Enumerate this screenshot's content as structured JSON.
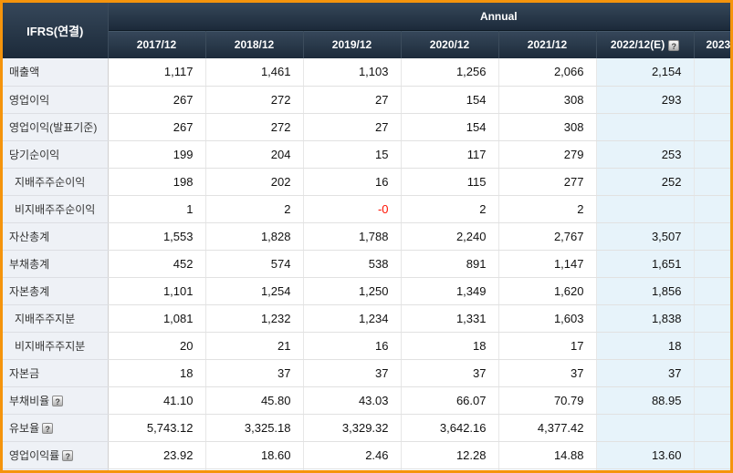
{
  "header": {
    "corner_label": "IFRS(연결)",
    "group_label": "Annual"
  },
  "icons": {
    "help_glyph": "?"
  },
  "colors": {
    "frame_orange": "#f5940c",
    "hdr_top": "#36475a",
    "hdr_bottom": "#1c2a3a",
    "label_bg": "#eef1f6",
    "est_bg": "#e7f3fa",
    "negative": "#ff1100"
  },
  "table": {
    "columns": [
      {
        "label": "2017/12"
      },
      {
        "label": "2018/12"
      },
      {
        "label": "2019/12"
      },
      {
        "label": "2020/12"
      },
      {
        "label": "2021/12"
      },
      {
        "label": "2022/12(E)",
        "estimate": true,
        "help": true
      },
      {
        "label": "2023",
        "estimate": true,
        "cut": true
      }
    ],
    "rows": [
      {
        "label": "매출액",
        "values": [
          "1,117",
          "1,461",
          "1,103",
          "1,256",
          "2,066",
          "2,154",
          ""
        ]
      },
      {
        "label": "영업이익",
        "values": [
          "267",
          "272",
          "27",
          "154",
          "308",
          "293",
          ""
        ]
      },
      {
        "label": "영업이익(발표기준)",
        "values": [
          "267",
          "272",
          "27",
          "154",
          "308",
          "",
          ""
        ]
      },
      {
        "label": "당기순이익",
        "values": [
          "199",
          "204",
          "15",
          "117",
          "279",
          "253",
          ""
        ]
      },
      {
        "label": "지배주주순이익",
        "indent": true,
        "values": [
          "198",
          "202",
          "16",
          "115",
          "277",
          "252",
          ""
        ]
      },
      {
        "label": "비지배주주순이익",
        "indent": true,
        "values": [
          "1",
          "2",
          "-0",
          "2",
          "2",
          "",
          ""
        ]
      },
      {
        "label": "자산총계",
        "values": [
          "1,553",
          "1,828",
          "1,788",
          "2,240",
          "2,767",
          "3,507",
          ""
        ]
      },
      {
        "label": "부채총계",
        "values": [
          "452",
          "574",
          "538",
          "891",
          "1,147",
          "1,651",
          ""
        ]
      },
      {
        "label": "자본총계",
        "values": [
          "1,101",
          "1,254",
          "1,250",
          "1,349",
          "1,620",
          "1,856",
          ""
        ]
      },
      {
        "label": "지배주주지분",
        "indent": true,
        "values": [
          "1,081",
          "1,232",
          "1,234",
          "1,331",
          "1,603",
          "1,838",
          ""
        ]
      },
      {
        "label": "비지배주주지분",
        "indent": true,
        "values": [
          "20",
          "21",
          "16",
          "18",
          "17",
          "18",
          ""
        ]
      },
      {
        "label": "자본금",
        "values": [
          "18",
          "37",
          "37",
          "37",
          "37",
          "37",
          ""
        ]
      },
      {
        "label": "부채비율",
        "help": true,
        "values": [
          "41.10",
          "45.80",
          "43.03",
          "66.07",
          "70.79",
          "88.95",
          ""
        ]
      },
      {
        "label": "유보율",
        "help": true,
        "values": [
          "5,743.12",
          "3,325.18",
          "3,329.32",
          "3,642.16",
          "4,377.42",
          "",
          ""
        ]
      },
      {
        "label": "영업이익률",
        "help": true,
        "values": [
          "23.92",
          "18.60",
          "2.46",
          "12.28",
          "14.88",
          "13.60",
          ""
        ]
      }
    ]
  }
}
